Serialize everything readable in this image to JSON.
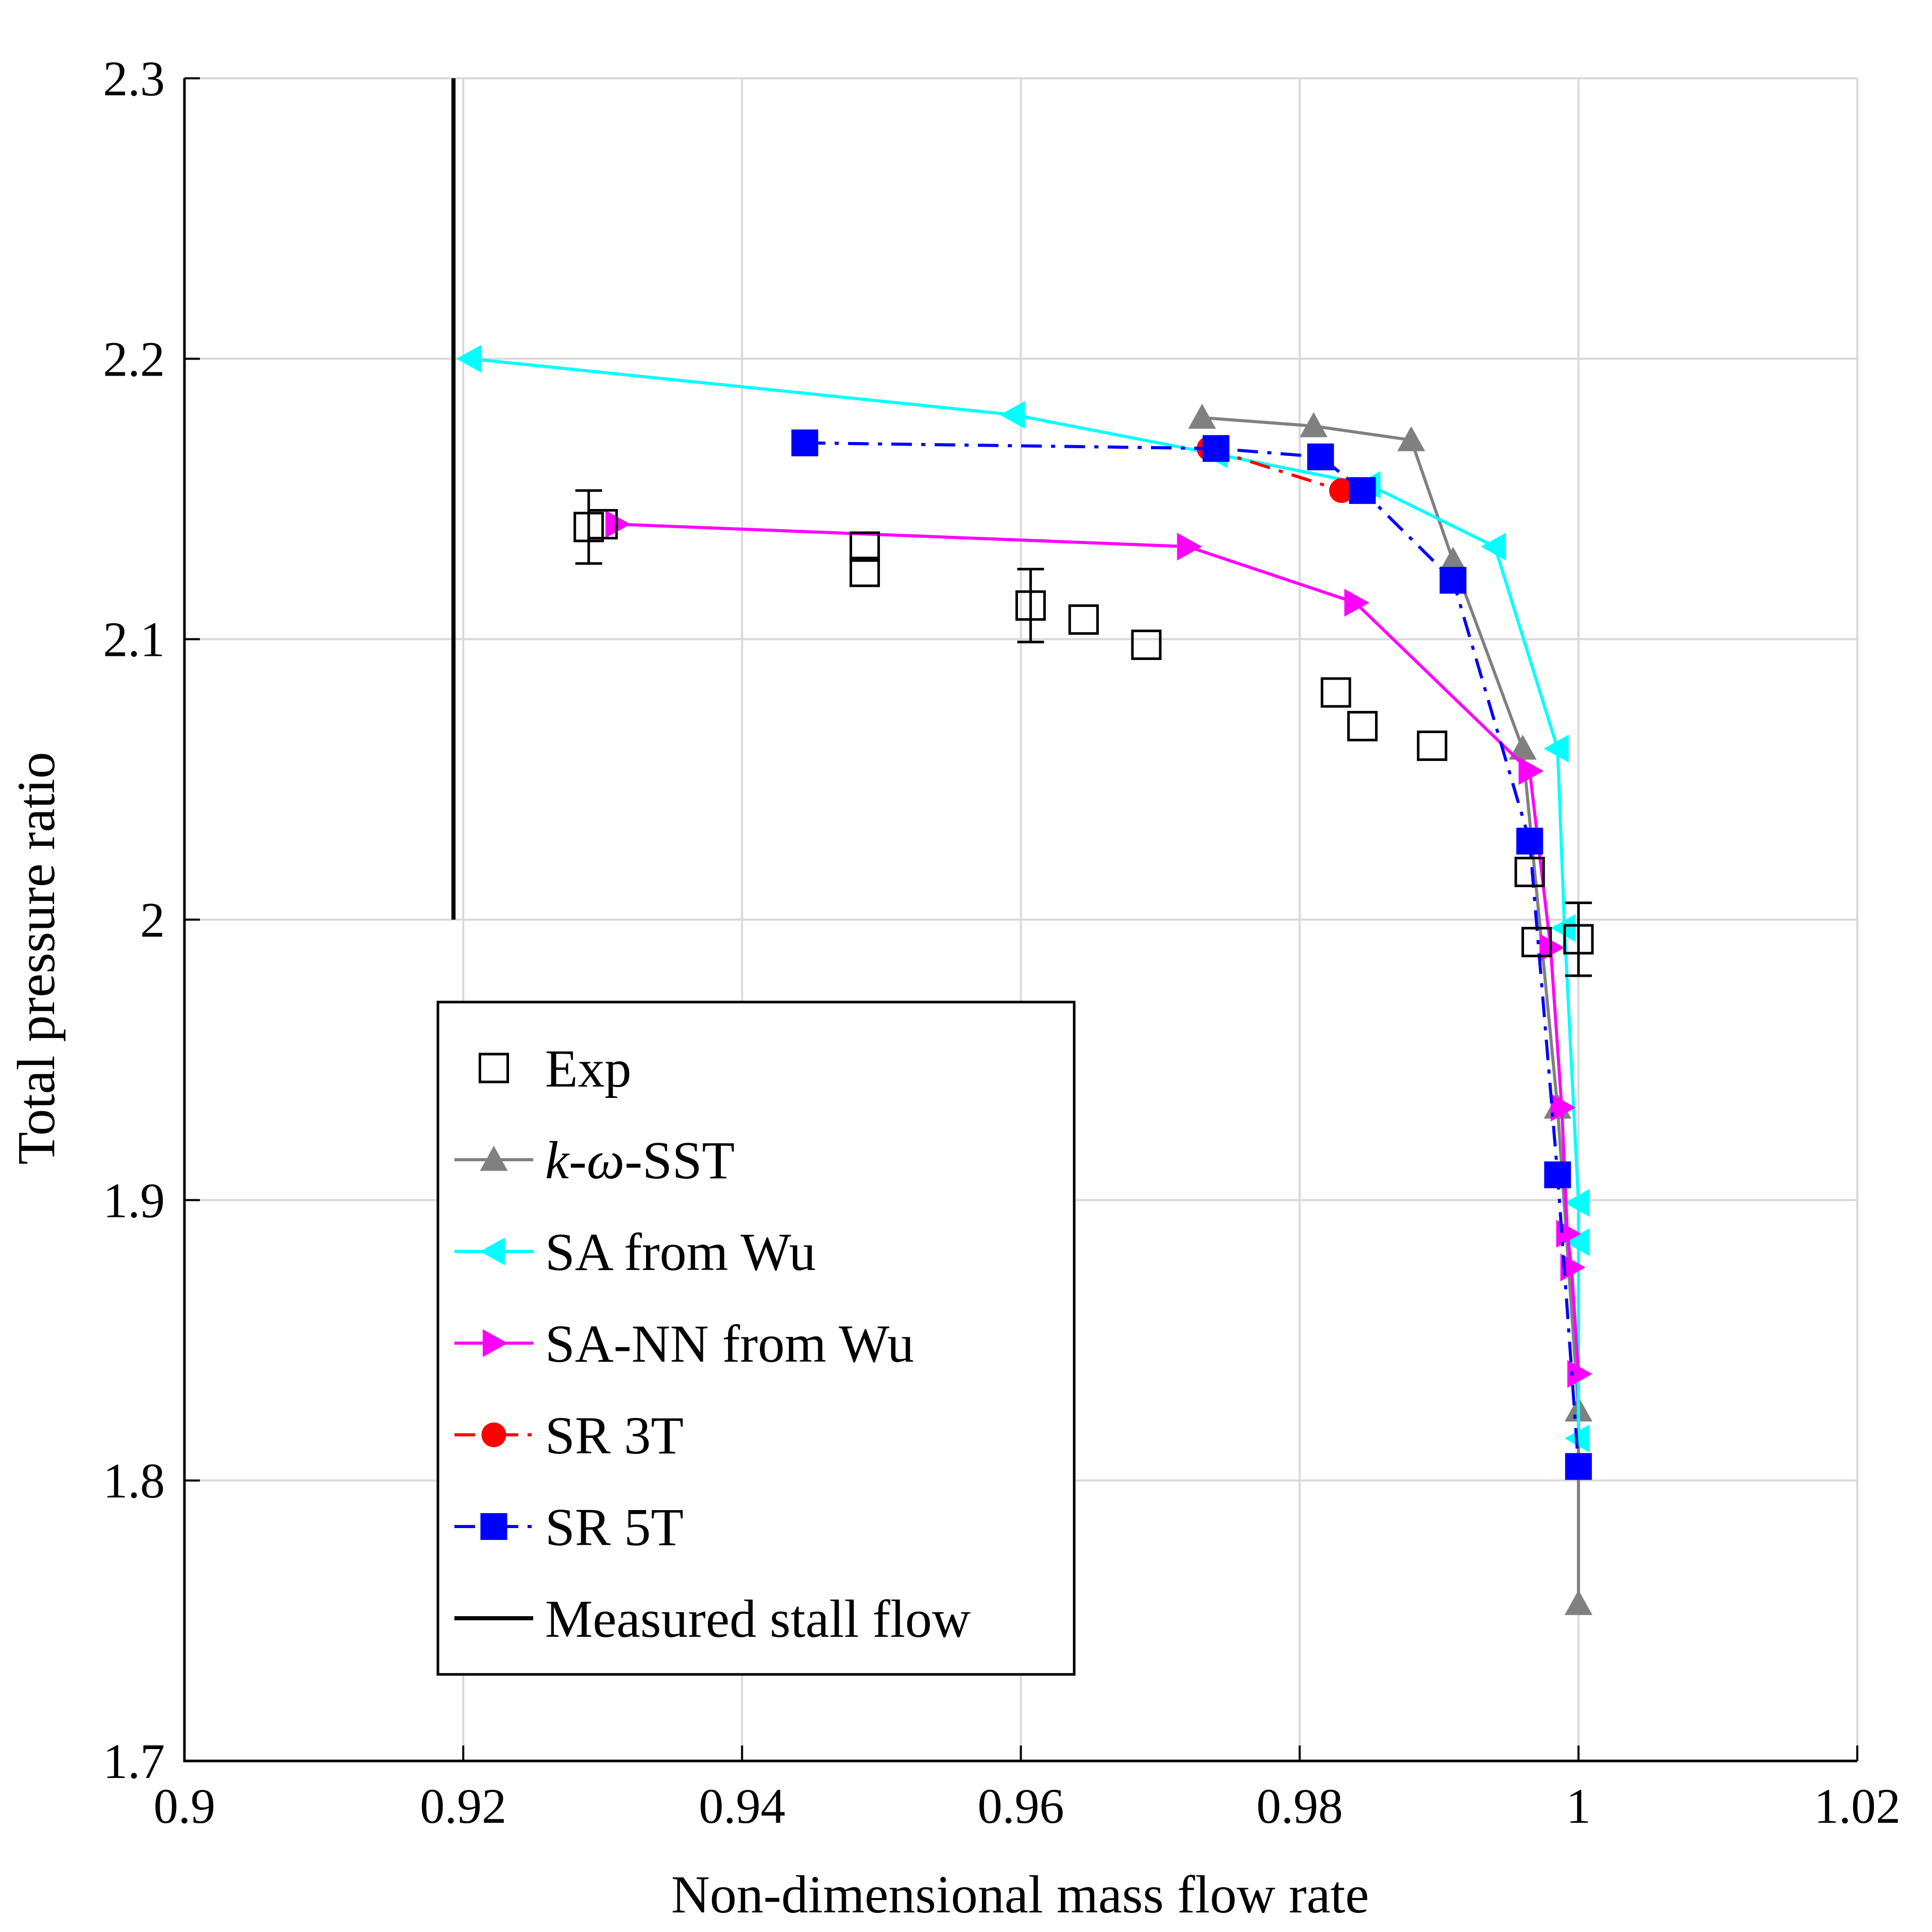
{
  "chart_data": {
    "type": "line",
    "xlabel": "Non-dimensional mass flow rate",
    "ylabel": "Total pressure ratio",
    "xlim": [
      0.9,
      1.02
    ],
    "ylim": [
      1.7,
      2.3
    ],
    "xticks": [
      0.9,
      0.92,
      0.94,
      0.96,
      0.98,
      1,
      1.02
    ],
    "yticks": [
      1.7,
      1.8,
      1.9,
      2,
      2.1,
      2.2,
      2.3
    ],
    "xtick_labels": [
      "0.9",
      "0.92",
      "0.94",
      "0.96",
      "0.98",
      "1",
      "1.02"
    ],
    "ytick_labels": [
      "1.7",
      "1.8",
      "1.9",
      "2",
      "2.1",
      "2.2",
      "2.3"
    ],
    "grid": true,
    "legend_position": "bottom-left",
    "series": [
      {
        "name": "Exp",
        "color": "#000000",
        "marker": "square-open",
        "line": "none",
        "x": [
          0.929,
          0.93,
          0.9488,
          0.9488,
          0.9607,
          0.9645,
          0.969,
          0.9826,
          0.9845,
          0.9895,
          0.9965,
          0.997,
          1.0
        ],
        "y": [
          2.14,
          2.141,
          2.133,
          2.124,
          2.112,
          2.107,
          2.098,
          2.081,
          2.069,
          2.062,
          2.017,
          1.992,
          1.993
        ],
        "error_bars": [
          {
            "x": 0.929,
            "y": 2.14,
            "err": 0.013
          },
          {
            "x": 0.9607,
            "y": 2.112,
            "err": 0.013
          },
          {
            "x": 1.0,
            "y": 1.993,
            "err": 0.013
          }
        ]
      },
      {
        "name": "k-ω-SST",
        "label_italic_part": "k-ω",
        "label_suffix": "-SST",
        "color": "#808080",
        "marker": "triangle-up",
        "line": "solid",
        "x": [
          0.973,
          0.981,
          0.988,
          0.991,
          0.996,
          0.9985,
          1.0,
          1.0
        ],
        "y": [
          2.179,
          2.176,
          2.171,
          2.128,
          2.061,
          1.933,
          1.825,
          1.756
        ]
      },
      {
        "name": "SA from Wu",
        "color": "#00ffff",
        "marker": "triangle-left",
        "line": "solid",
        "x": [
          0.9205,
          0.9595,
          0.974,
          0.985,
          0.994,
          0.9985,
          0.999,
          1.0,
          1.0,
          1.0
        ],
        "y": [
          2.2,
          2.18,
          2.166,
          2.155,
          2.133,
          2.061,
          1.997,
          1.899,
          1.885,
          1.815
        ]
      },
      {
        "name": "SA-NN from Wu",
        "color": "#ff00ff",
        "marker": "triangle-right",
        "line": "solid",
        "x": [
          0.931,
          0.972,
          0.984,
          0.9965,
          0.998,
          0.9988,
          0.9992,
          0.9995,
          1.0
        ],
        "y": [
          2.141,
          2.133,
          2.113,
          2.053,
          1.99,
          1.933,
          1.888,
          1.876,
          1.838
        ]
      },
      {
        "name": "SR 3T",
        "color": "#ff0000",
        "marker": "circle",
        "line": "dash-dot",
        "x": [
          0.9735,
          0.983
        ],
        "y": [
          2.168,
          2.153
        ]
      },
      {
        "name": "SR 5T",
        "color": "#0000ff",
        "marker": "square",
        "line": "dash-dot",
        "x": [
          0.9445,
          0.974,
          0.9815,
          0.9845,
          0.991,
          0.9965,
          0.9985,
          1.0
        ],
        "y": [
          2.17,
          2.168,
          2.165,
          2.153,
          2.121,
          2.028,
          1.909,
          1.805
        ]
      },
      {
        "name": "Measured stall flow",
        "color": "#000000",
        "marker": "none",
        "line": "solid",
        "x": [
          0.9193,
          0.9193
        ],
        "y": [
          2.0,
          2.3
        ]
      }
    ]
  }
}
